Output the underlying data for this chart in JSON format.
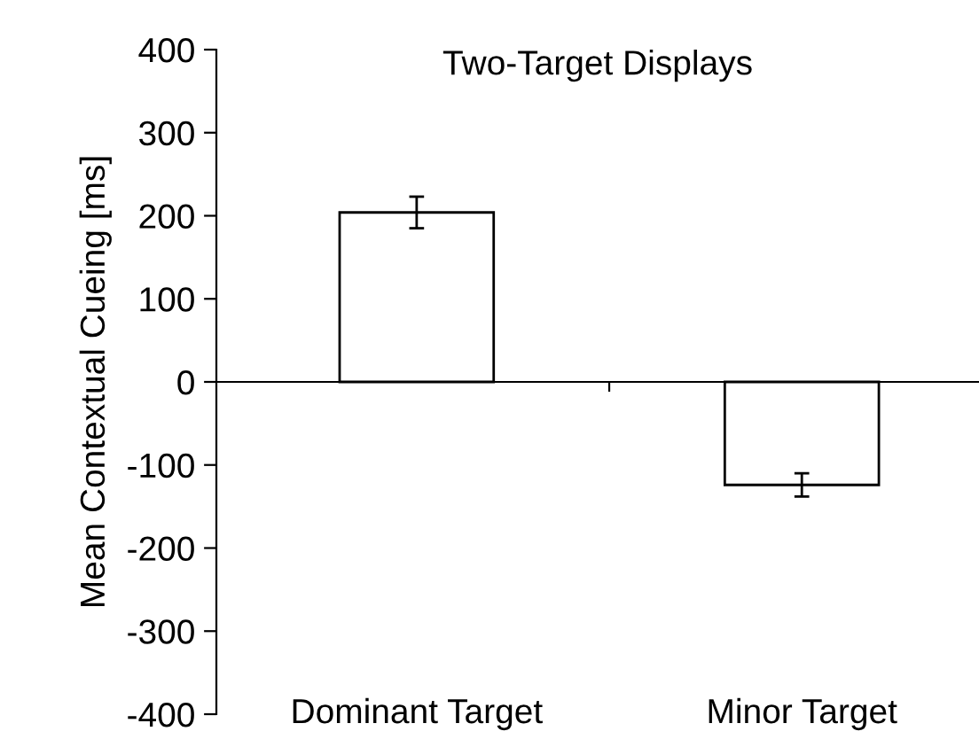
{
  "chart_data": {
    "type": "bar",
    "title": "Two-Target Displays",
    "ylabel": "Mean Contextual Cueing [ms]",
    "categories": [
      "Dominant Target",
      "Minor Target"
    ],
    "values": [
      204,
      -124
    ],
    "errors": [
      19,
      14
    ],
    "color": "#ffffff",
    "ylim": [
      -400,
      400
    ],
    "yticks": [
      -400,
      -300,
      -200,
      -100,
      0,
      100,
      200,
      300,
      400
    ],
    "legend": false
  }
}
